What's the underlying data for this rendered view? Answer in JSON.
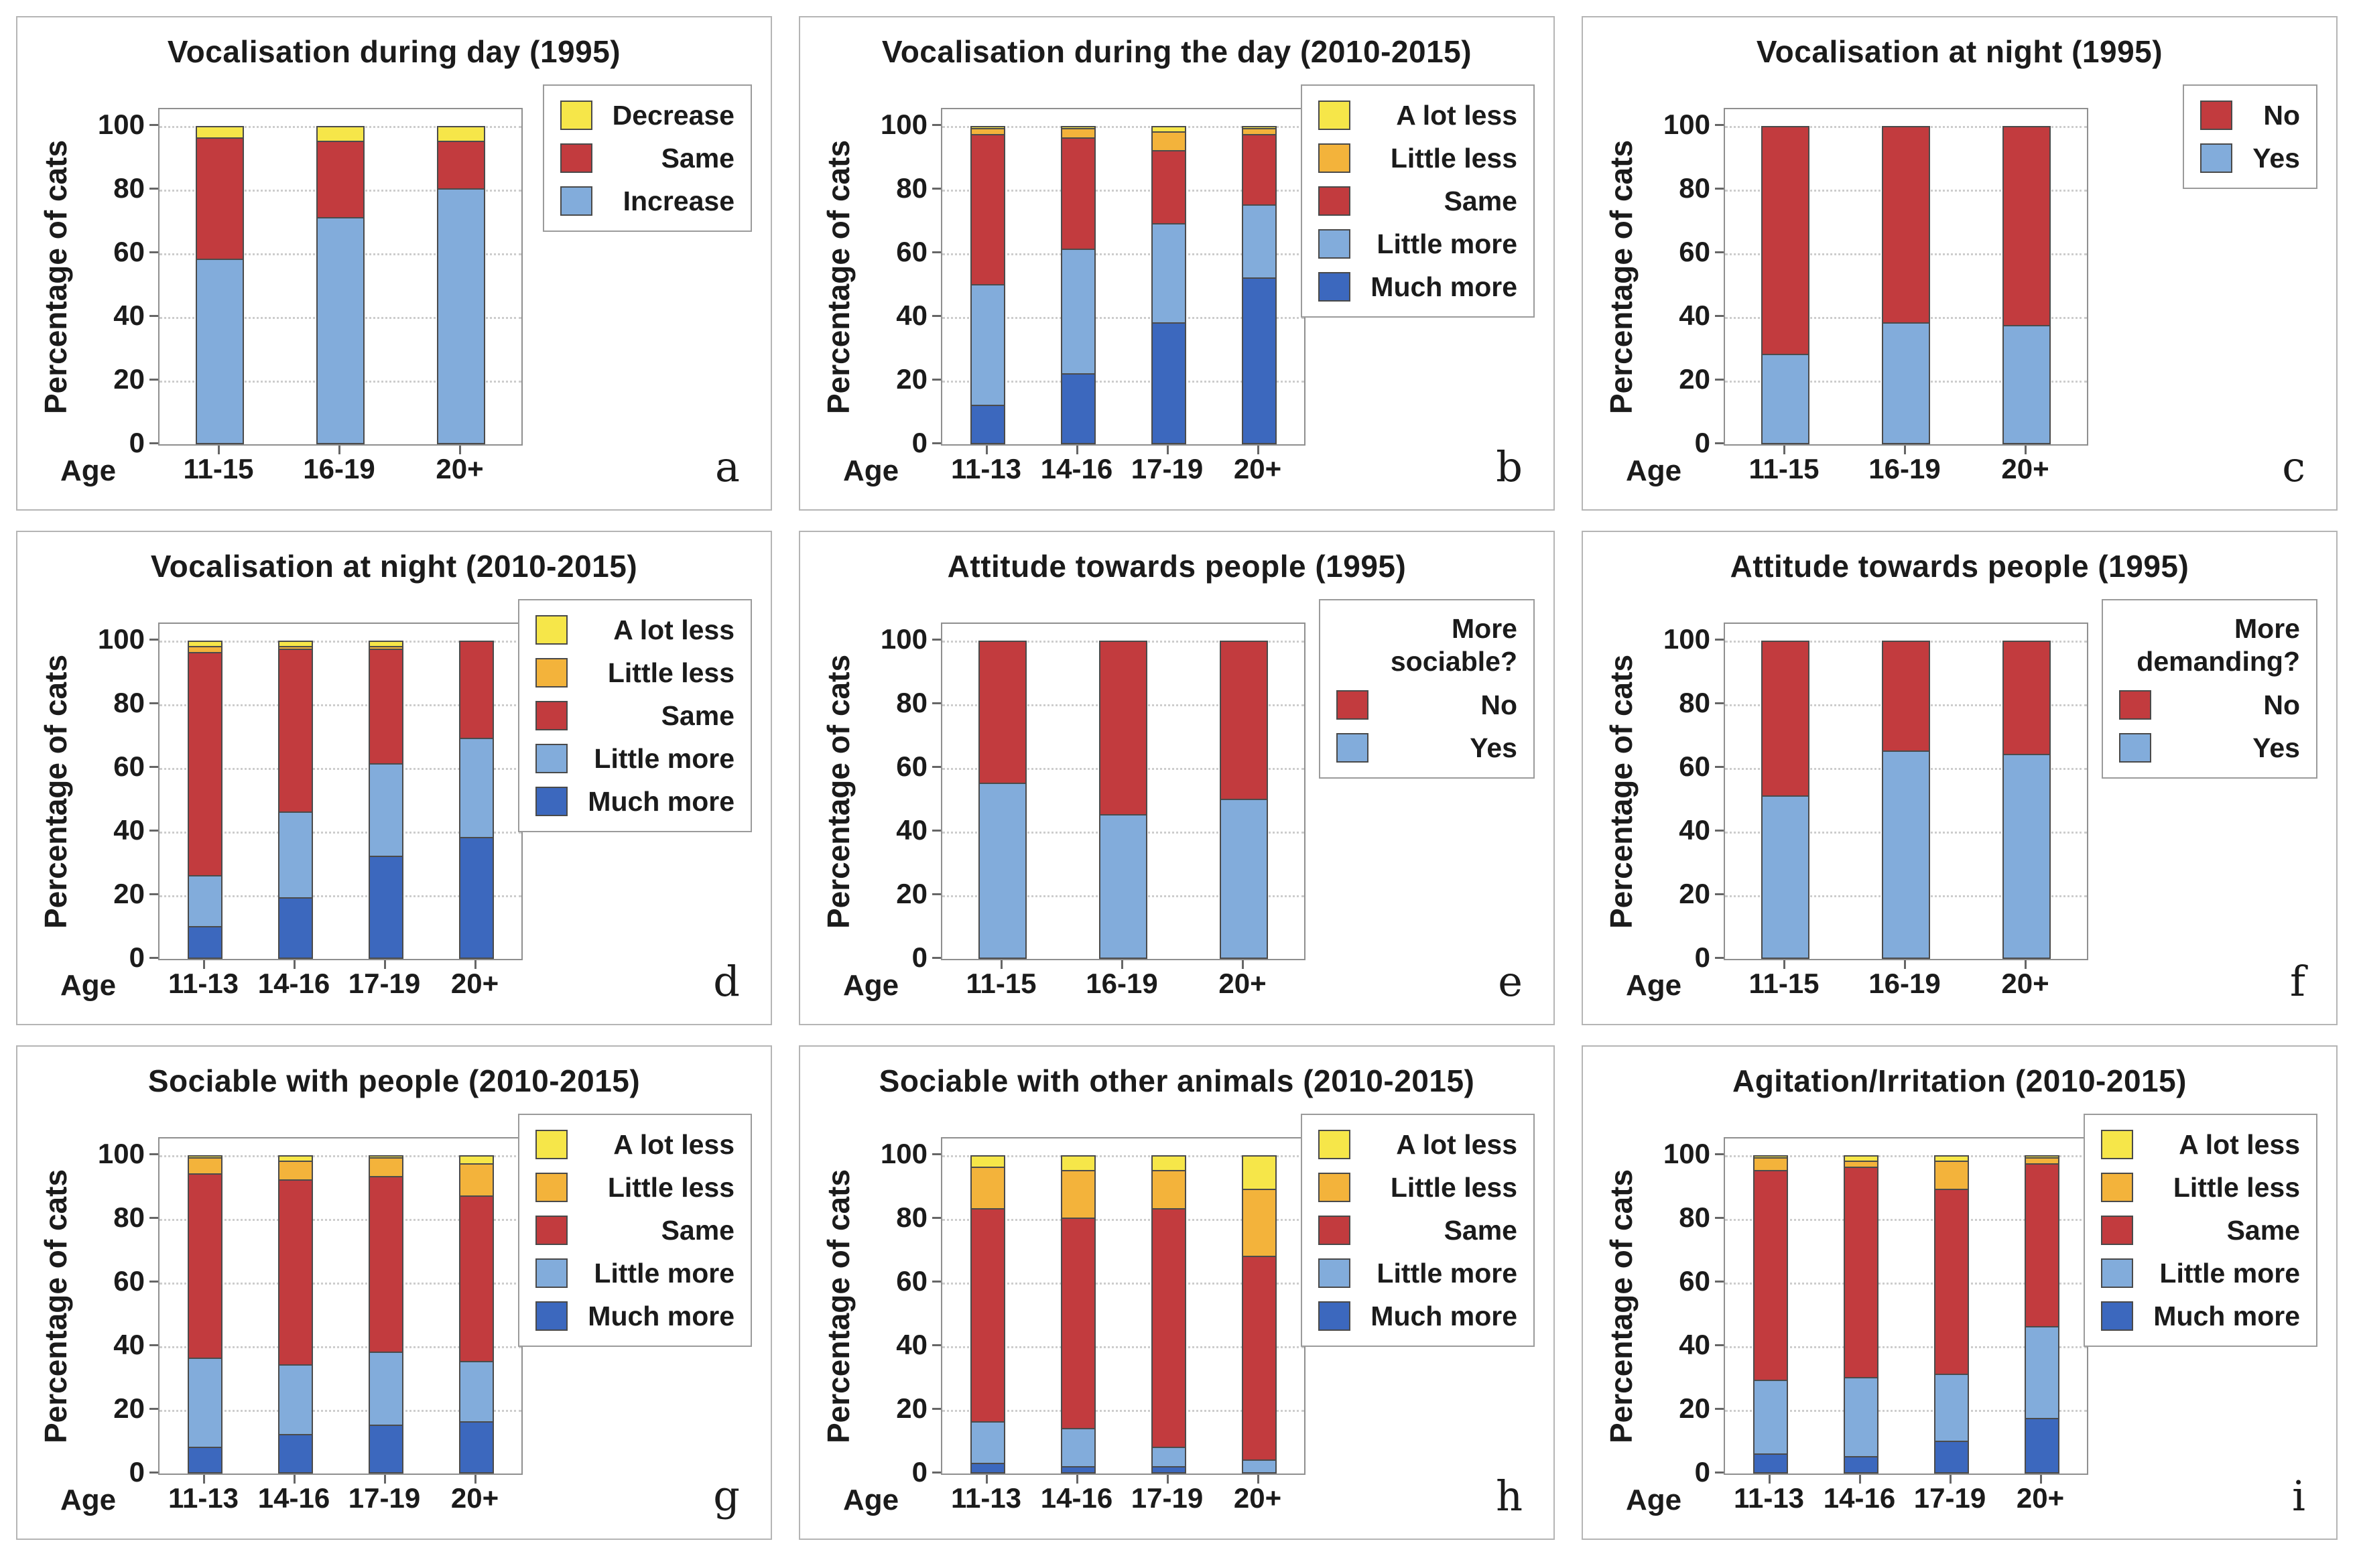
{
  "palette": {
    "yellow": "#F6E649",
    "orange": "#F3B33B",
    "red": "#C23B3E",
    "light_blue": "#82ACDB",
    "dark_blue": "#3C68BE",
    "grid_line": "#cdcdcd",
    "axis_border": "#8f8f8f",
    "segment_edge": "#4b4b4b",
    "panel_border": "#b5b5b5",
    "text": "#1b1b1b"
  },
  "chart_data": [
    {
      "id": "a",
      "letter": "a",
      "type": "bar",
      "stacked": true,
      "title": "Vocalisation during day (1995)",
      "ylabel": "Percentage of cats",
      "xlabel_prefix": "Age",
      "ylim": [
        0,
        100
      ],
      "yticks": [
        0,
        20,
        40,
        60,
        80,
        100
      ],
      "grid": "dotted",
      "legend_position": "right",
      "legend_title": "",
      "categories": [
        "11-15",
        "16-19",
        "20+"
      ],
      "series": [
        {
          "label": "Decrease",
          "color": "yellow",
          "values": [
            4,
            5,
            5
          ]
        },
        {
          "label": "Same",
          "color": "red",
          "values": [
            38,
            24,
            15
          ]
        },
        {
          "label": "Increase",
          "color": "light_blue",
          "values": [
            58,
            71,
            80
          ]
        }
      ]
    },
    {
      "id": "b",
      "letter": "b",
      "type": "bar",
      "stacked": true,
      "title": "Vocalisation during the day (2010-2015)",
      "ylabel": "Percentage of cats",
      "xlabel_prefix": "Age",
      "ylim": [
        0,
        100
      ],
      "yticks": [
        0,
        20,
        40,
        60,
        80,
        100
      ],
      "grid": "dotted",
      "legend_position": "right",
      "legend_title": "",
      "categories": [
        "11-13",
        "14-16",
        "17-19",
        "20+"
      ],
      "series": [
        {
          "label": "A lot less",
          "color": "yellow",
          "values": [
            1,
            1,
            2,
            1
          ]
        },
        {
          "label": "Little less",
          "color": "orange",
          "values": [
            2,
            3,
            6,
            2
          ]
        },
        {
          "label": "Same",
          "color": "red",
          "values": [
            47,
            35,
            23,
            22
          ]
        },
        {
          "label": "Little more",
          "color": "light_blue",
          "values": [
            38,
            39,
            31,
            23
          ]
        },
        {
          "label": "Much more",
          "color": "dark_blue",
          "values": [
            12,
            22,
            38,
            52
          ]
        }
      ]
    },
    {
      "id": "c",
      "letter": "c",
      "type": "bar",
      "stacked": true,
      "title": "Vocalisation at night (1995)",
      "ylabel": "Percentage of cats",
      "xlabel_prefix": "Age",
      "ylim": [
        0,
        100
      ],
      "yticks": [
        0,
        20,
        40,
        60,
        80,
        100
      ],
      "grid": "dotted",
      "legend_position": "right",
      "legend_title": "",
      "categories": [
        "11-15",
        "16-19",
        "20+"
      ],
      "series": [
        {
          "label": "No",
          "color": "red",
          "values": [
            72,
            62,
            63
          ]
        },
        {
          "label": "Yes",
          "color": "light_blue",
          "values": [
            28,
            38,
            37
          ]
        }
      ]
    },
    {
      "id": "d",
      "letter": "d",
      "type": "bar",
      "stacked": true,
      "title": "Vocalisation at night (2010-2015)",
      "ylabel": "Percentage of cats",
      "xlabel_prefix": "Age",
      "ylim": [
        0,
        100
      ],
      "yticks": [
        0,
        20,
        40,
        60,
        80,
        100
      ],
      "grid": "dotted",
      "legend_position": "right",
      "legend_title": "",
      "categories": [
        "11-13",
        "14-16",
        "17-19",
        "20+"
      ],
      "series": [
        {
          "label": "A lot less",
          "color": "yellow",
          "values": [
            2,
            2,
            2,
            0
          ]
        },
        {
          "label": "Little less",
          "color": "orange",
          "values": [
            2,
            1,
            1,
            0
          ]
        },
        {
          "label": "Same",
          "color": "red",
          "values": [
            70,
            51,
            36,
            31
          ]
        },
        {
          "label": "Little more",
          "color": "light_blue",
          "values": [
            16,
            27,
            29,
            31
          ]
        },
        {
          "label": "Much more",
          "color": "dark_blue",
          "values": [
            10,
            19,
            32,
            38
          ]
        }
      ]
    },
    {
      "id": "e",
      "letter": "e",
      "type": "bar",
      "stacked": true,
      "title": "Attitude towards people (1995)",
      "ylabel": "Percentage of cats",
      "xlabel_prefix": "Age",
      "ylim": [
        0,
        100
      ],
      "yticks": [
        0,
        20,
        40,
        60,
        80,
        100
      ],
      "grid": "dotted",
      "legend_position": "right",
      "legend_title": "More sociable?",
      "categories": [
        "11-15",
        "16-19",
        "20+"
      ],
      "series": [
        {
          "label": "No",
          "color": "red",
          "values": [
            45,
            55,
            50
          ]
        },
        {
          "label": "Yes",
          "color": "light_blue",
          "values": [
            55,
            45,
            50
          ]
        }
      ]
    },
    {
      "id": "f",
      "letter": "f",
      "type": "bar",
      "stacked": true,
      "title": "Attitude towards people (1995)",
      "ylabel": "Percentage of cats",
      "xlabel_prefix": "Age",
      "ylim": [
        0,
        100
      ],
      "yticks": [
        0,
        20,
        40,
        60,
        80,
        100
      ],
      "grid": "dotted",
      "legend_position": "right",
      "legend_title": "More demanding?",
      "categories": [
        "11-15",
        "16-19",
        "20+"
      ],
      "series": [
        {
          "label": "No",
          "color": "red",
          "values": [
            49,
            35,
            36
          ]
        },
        {
          "label": "Yes",
          "color": "light_blue",
          "values": [
            51,
            65,
            64
          ]
        }
      ]
    },
    {
      "id": "g",
      "letter": "g",
      "type": "bar",
      "stacked": true,
      "title": "Sociable with people (2010-2015)",
      "ylabel": "Percentage of cats",
      "xlabel_prefix": "Age",
      "ylim": [
        0,
        100
      ],
      "yticks": [
        0,
        20,
        40,
        60,
        80,
        100
      ],
      "grid": "dotted",
      "legend_position": "right",
      "legend_title": "",
      "categories": [
        "11-13",
        "14-16",
        "17-19",
        "20+"
      ],
      "series": [
        {
          "label": "A lot less",
          "color": "yellow",
          "values": [
            1,
            2,
            1,
            3
          ]
        },
        {
          "label": "Little less",
          "color": "orange",
          "values": [
            5,
            6,
            6,
            10
          ]
        },
        {
          "label": "Same",
          "color": "red",
          "values": [
            58,
            58,
            55,
            52
          ]
        },
        {
          "label": "Little more",
          "color": "light_blue",
          "values": [
            28,
            22,
            23,
            19
          ]
        },
        {
          "label": "Much more",
          "color": "dark_blue",
          "values": [
            8,
            12,
            15,
            16
          ]
        }
      ]
    },
    {
      "id": "h",
      "letter": "h",
      "type": "bar",
      "stacked": true,
      "title": "Sociable with other animals (2010-2015)",
      "ylabel": "Percentage of cats",
      "xlabel_prefix": "Age",
      "ylim": [
        0,
        100
      ],
      "yticks": [
        0,
        20,
        40,
        60,
        80,
        100
      ],
      "grid": "dotted",
      "legend_position": "right",
      "legend_title": "",
      "categories": [
        "11-13",
        "14-16",
        "17-19",
        "20+"
      ],
      "series": [
        {
          "label": "A lot less",
          "color": "yellow",
          "values": [
            4,
            5,
            5,
            11
          ]
        },
        {
          "label": "Little less",
          "color": "orange",
          "values": [
            13,
            15,
            12,
            21
          ]
        },
        {
          "label": "Same",
          "color": "red",
          "values": [
            67,
            66,
            75,
            64
          ]
        },
        {
          "label": "Little more",
          "color": "light_blue",
          "values": [
            13,
            12,
            6,
            4
          ]
        },
        {
          "label": "Much more",
          "color": "dark_blue",
          "values": [
            3,
            2,
            2,
            0
          ]
        }
      ]
    },
    {
      "id": "i",
      "letter": "i",
      "type": "bar",
      "stacked": true,
      "title": "Agitation/Irritation (2010-2015)",
      "ylabel": "Percentage of cats",
      "xlabel_prefix": "Age",
      "ylim": [
        0,
        100
      ],
      "yticks": [
        0,
        20,
        40,
        60,
        80,
        100
      ],
      "grid": "dotted",
      "legend_position": "right",
      "legend_title": "",
      "categories": [
        "11-13",
        "14-16",
        "17-19",
        "20+"
      ],
      "series": [
        {
          "label": "A lot less",
          "color": "yellow",
          "values": [
            1,
            2,
            2,
            1
          ]
        },
        {
          "label": "Little less",
          "color": "orange",
          "values": [
            4,
            2,
            9,
            2
          ]
        },
        {
          "label": "Same",
          "color": "red",
          "values": [
            66,
            66,
            58,
            51
          ]
        },
        {
          "label": "Little more",
          "color": "light_blue",
          "values": [
            23,
            25,
            21,
            29
          ]
        },
        {
          "label": "Much more",
          "color": "dark_blue",
          "values": [
            6,
            5,
            10,
            17
          ]
        }
      ]
    }
  ]
}
